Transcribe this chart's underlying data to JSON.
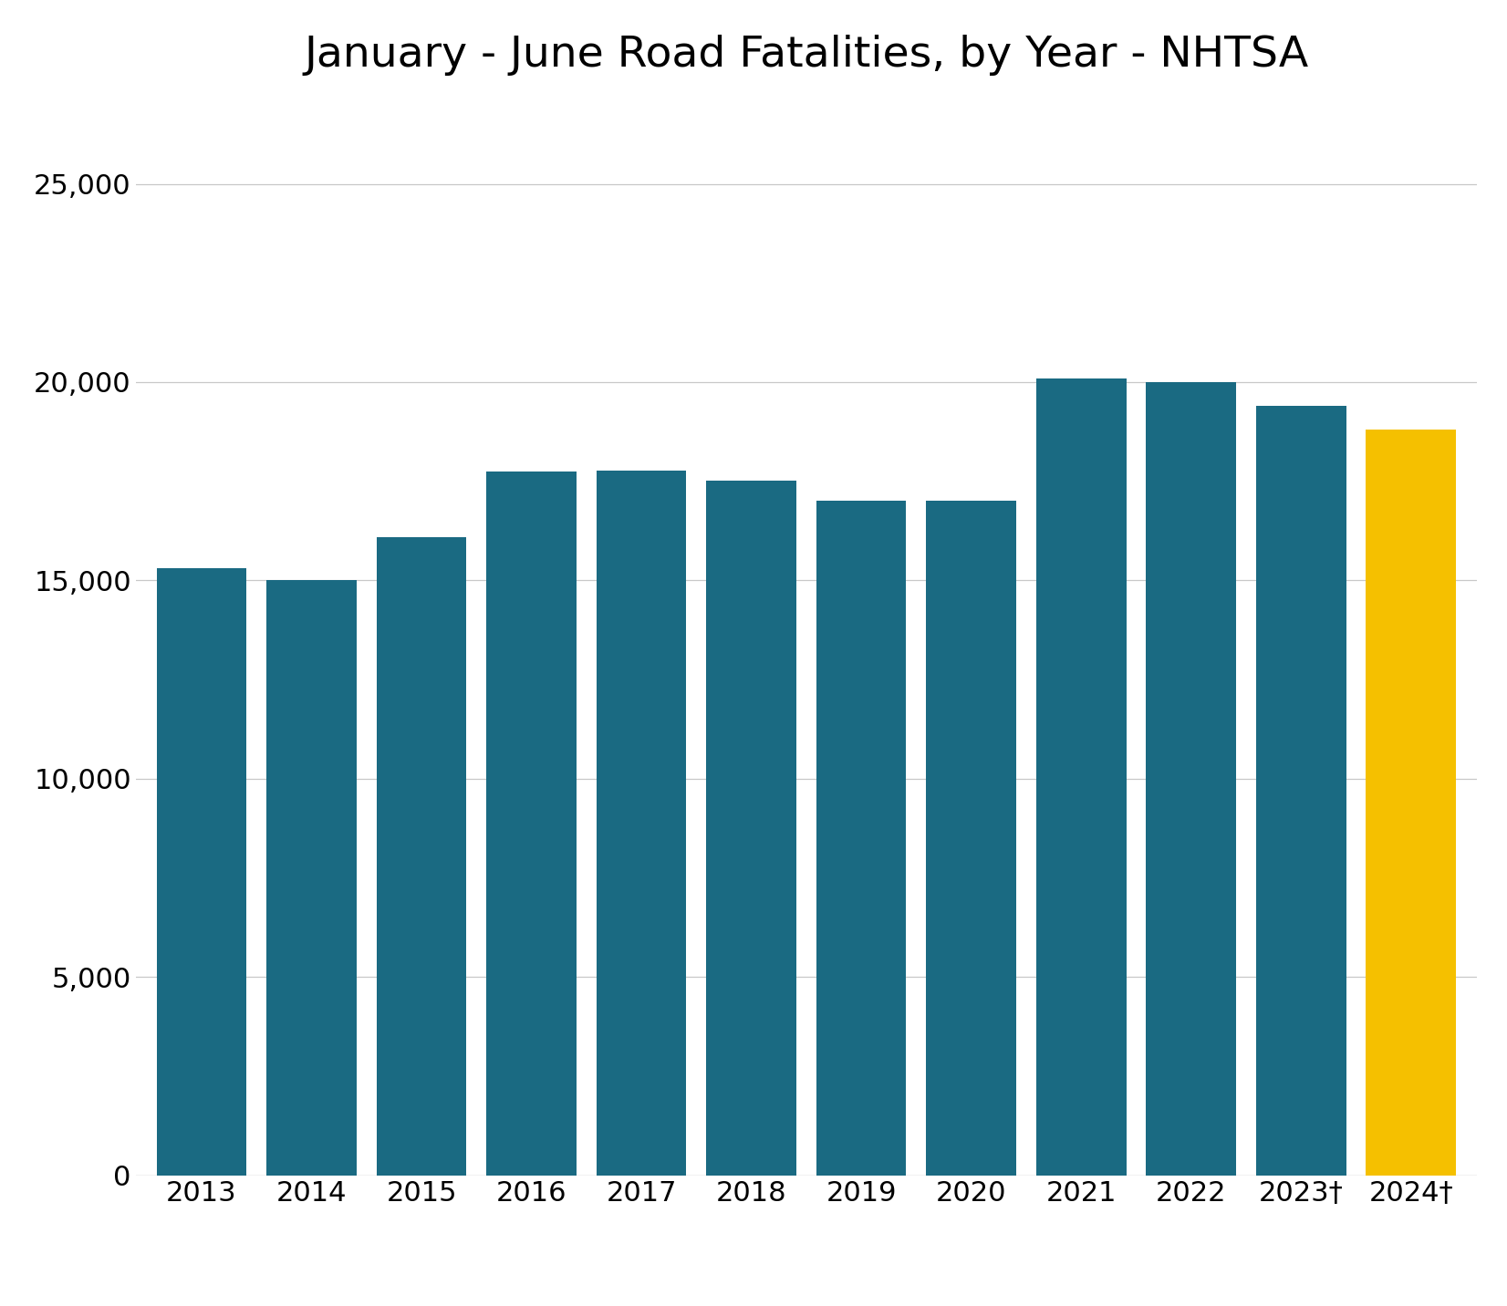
{
  "title": "January - June Road Fatalities, by Year - NHTSA",
  "categories": [
    "2013",
    "2014",
    "2015",
    "2016",
    "2017",
    "2018",
    "2019",
    "2020",
    "2021",
    "2022",
    "2023†",
    "2024†"
  ],
  "values": [
    15320,
    15000,
    16100,
    17750,
    17780,
    17520,
    17000,
    17020,
    20100,
    20000,
    19400,
    18800
  ],
  "bar_colors": [
    "#1a6a82",
    "#1a6a82",
    "#1a6a82",
    "#1a6a82",
    "#1a6a82",
    "#1a6a82",
    "#1a6a82",
    "#1a6a82",
    "#1a6a82",
    "#1a6a82",
    "#1a6a82",
    "#f5c000"
  ],
  "ylim": [
    0,
    27000
  ],
  "yticks": [
    0,
    5000,
    10000,
    15000,
    20000,
    25000
  ],
  "background_color": "#ffffff",
  "grid_color": "#c8c8c8",
  "title_fontsize": 34,
  "tick_fontsize": 22,
  "bar_width": 0.82
}
